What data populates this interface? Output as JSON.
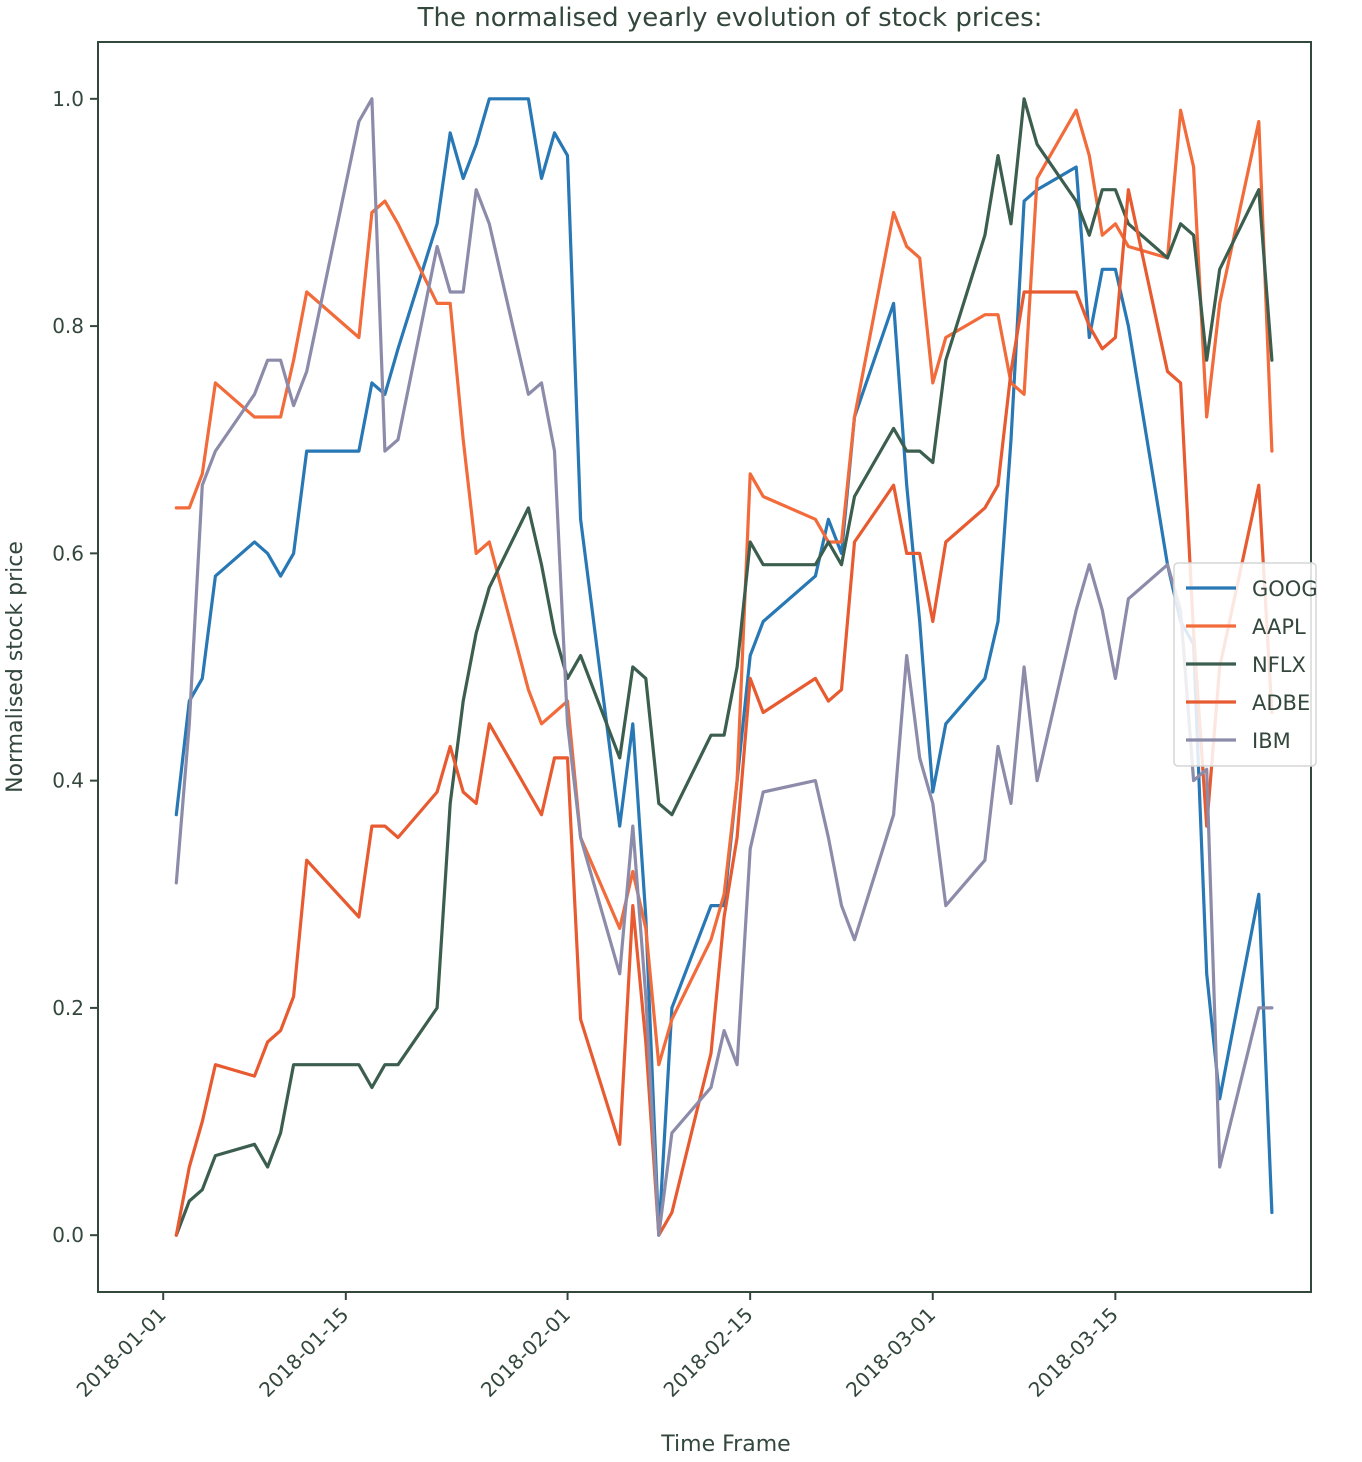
{
  "chart_data": {
    "type": "line",
    "title": "The normalised yearly evolution of stock prices:",
    "xlabel": "Time Frame",
    "ylabel": "Normalised stock price",
    "grid": false,
    "legend_placement": "center-right",
    "xlim": [
      "2017-12-27",
      "2018-03-30"
    ],
    "ylim": [
      -0.05,
      1.05
    ],
    "xticks": [
      {
        "date": "2018-01-01",
        "label": "2018-01-01"
      },
      {
        "date": "2018-01-15",
        "label": "2018-01-15"
      },
      {
        "date": "2018-02-01",
        "label": "2018-02-01"
      },
      {
        "date": "2018-02-15",
        "label": "2018-02-15"
      },
      {
        "date": "2018-03-01",
        "label": "2018-03-01"
      },
      {
        "date": "2018-03-15",
        "label": "2018-03-15"
      }
    ],
    "yticks": [
      {
        "value": 0.0,
        "label": "0.0"
      },
      {
        "value": 0.2,
        "label": "0.2"
      },
      {
        "value": 0.4,
        "label": "0.4"
      },
      {
        "value": 0.6,
        "label": "0.6"
      },
      {
        "value": 0.8,
        "label": "0.8"
      },
      {
        "value": 1.0,
        "label": "1.0"
      }
    ],
    "x": [
      "2018-01-02",
      "2018-01-03",
      "2018-01-04",
      "2018-01-05",
      "2018-01-08",
      "2018-01-09",
      "2018-01-10",
      "2018-01-11",
      "2018-01-12",
      "2018-01-16",
      "2018-01-17",
      "2018-01-18",
      "2018-01-19",
      "2018-01-22",
      "2018-01-23",
      "2018-01-24",
      "2018-01-25",
      "2018-01-26",
      "2018-01-29",
      "2018-01-30",
      "2018-01-31",
      "2018-02-01",
      "2018-02-02",
      "2018-02-05",
      "2018-02-06",
      "2018-02-07",
      "2018-02-08",
      "2018-02-09",
      "2018-02-12",
      "2018-02-13",
      "2018-02-14",
      "2018-02-15",
      "2018-02-16",
      "2018-02-20",
      "2018-02-21",
      "2018-02-22",
      "2018-02-23",
      "2018-02-26",
      "2018-02-27",
      "2018-02-28",
      "2018-03-01",
      "2018-03-02",
      "2018-03-05",
      "2018-03-06",
      "2018-03-07",
      "2018-03-08",
      "2018-03-09",
      "2018-03-12",
      "2018-03-13",
      "2018-03-14",
      "2018-03-15",
      "2018-03-16",
      "2018-03-19",
      "2018-03-20",
      "2018-03-21",
      "2018-03-22",
      "2018-03-23",
      "2018-03-26",
      "2018-03-27"
    ],
    "series": [
      {
        "name": "GOOG",
        "color": "#2878b5",
        "values": [
          0.37,
          0.47,
          0.49,
          0.58,
          0.61,
          0.6,
          0.58,
          0.6,
          0.69,
          0.69,
          0.75,
          0.74,
          0.78,
          0.89,
          0.97,
          0.93,
          0.96,
          1.0,
          1.0,
          0.93,
          0.97,
          0.95,
          0.63,
          0.36,
          0.45,
          0.28,
          0.0,
          0.2,
          0.29,
          0.29,
          0.4,
          0.51,
          0.54,
          0.58,
          0.63,
          0.6,
          0.72,
          0.82,
          0.66,
          0.54,
          0.39,
          0.45,
          0.49,
          0.54,
          0.7,
          0.91,
          0.92,
          0.94,
          0.79,
          0.85,
          0.85,
          0.8,
          0.59,
          0.54,
          0.52,
          0.23,
          0.12,
          0.3,
          0.02
        ]
      },
      {
        "name": "AAPL",
        "color": "#f26b3a",
        "values": [
          0.64,
          0.64,
          0.67,
          0.75,
          0.72,
          0.72,
          0.72,
          0.77,
          0.83,
          0.79,
          0.9,
          0.91,
          0.89,
          0.82,
          0.82,
          0.7,
          0.6,
          0.61,
          0.48,
          0.45,
          0.46,
          0.47,
          0.35,
          0.27,
          0.32,
          0.27,
          0.15,
          0.19,
          0.26,
          0.3,
          0.4,
          0.67,
          0.65,
          0.63,
          0.61,
          0.61,
          0.72,
          0.9,
          0.87,
          0.86,
          0.75,
          0.79,
          0.81,
          0.81,
          0.75,
          0.74,
          0.93,
          0.99,
          0.95,
          0.88,
          0.89,
          0.87,
          0.86,
          0.99,
          0.94,
          0.72,
          0.82,
          0.98,
          0.69
        ]
      },
      {
        "name": "NFLX",
        "color": "#3b5e4e",
        "values": [
          0.0,
          0.03,
          0.04,
          0.07,
          0.08,
          0.06,
          0.09,
          0.15,
          0.15,
          0.15,
          0.13,
          0.15,
          0.15,
          0.2,
          0.38,
          0.47,
          0.53,
          0.57,
          0.64,
          0.59,
          0.53,
          0.49,
          0.51,
          0.42,
          0.5,
          0.49,
          0.38,
          0.37,
          0.44,
          0.44,
          0.5,
          0.61,
          0.59,
          0.59,
          0.61,
          0.59,
          0.65,
          0.71,
          0.69,
          0.69,
          0.68,
          0.77,
          0.88,
          0.95,
          0.89,
          1.0,
          0.96,
          0.91,
          0.88,
          0.92,
          0.92,
          0.89,
          0.86,
          0.89,
          0.88,
          0.77,
          0.85,
          0.92,
          0.77
        ]
      },
      {
        "name": "ADBE",
        "color": "#e85b30",
        "values": [
          0.0,
          0.06,
          0.1,
          0.15,
          0.14,
          0.17,
          0.18,
          0.21,
          0.33,
          0.28,
          0.36,
          0.36,
          0.35,
          0.39,
          0.43,
          0.39,
          0.38,
          0.45,
          0.39,
          0.37,
          0.42,
          0.42,
          0.19,
          0.08,
          0.29,
          0.17,
          0.0,
          0.02,
          0.16,
          0.28,
          0.35,
          0.49,
          0.46,
          0.49,
          0.47,
          0.48,
          0.61,
          0.66,
          0.6,
          0.6,
          0.54,
          0.61,
          0.64,
          0.66,
          0.76,
          0.83,
          0.83,
          0.83,
          0.8,
          0.78,
          0.79,
          0.92,
          0.76,
          0.75,
          0.53,
          0.36,
          0.5,
          0.66,
          0.46
        ]
      },
      {
        "name": "IBM",
        "color": "#8c8caa",
        "values": [
          0.31,
          0.45,
          0.66,
          0.69,
          0.74,
          0.77,
          0.77,
          0.73,
          0.76,
          0.98,
          1.0,
          0.69,
          0.7,
          0.87,
          0.83,
          0.83,
          0.92,
          0.89,
          0.74,
          0.75,
          0.69,
          0.45,
          0.35,
          0.23,
          0.36,
          0.21,
          0.0,
          0.09,
          0.13,
          0.18,
          0.15,
          0.34,
          0.39,
          0.4,
          0.35,
          0.29,
          0.26,
          0.37,
          0.51,
          0.42,
          0.38,
          0.29,
          0.33,
          0.43,
          0.38,
          0.5,
          0.4,
          0.55,
          0.59,
          0.55,
          0.49,
          0.56,
          0.59,
          0.55,
          0.4,
          0.41,
          0.06,
          0.2,
          0.2
        ]
      }
    ]
  }
}
